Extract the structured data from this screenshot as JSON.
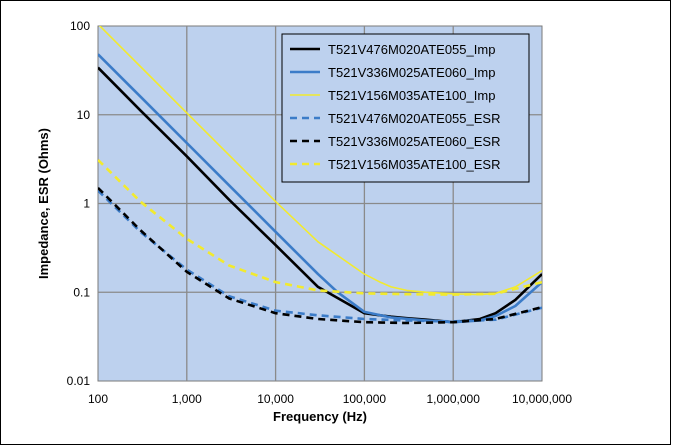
{
  "chart_data": {
    "type": "line",
    "title": "",
    "xlabel": "Frequency (Hz)",
    "ylabel": "Impedance, ESR (Ohms)",
    "x_scale": "log",
    "y_scale": "log",
    "xlim": [
      100,
      10000000
    ],
    "ylim": [
      0.01,
      100
    ],
    "x_ticks": [
      100,
      1000,
      10000,
      100000,
      1000000,
      10000000
    ],
    "x_tick_labels": [
      "100",
      "1,000",
      "10,000",
      "100,000",
      "1,000,000",
      "10,000,000"
    ],
    "y_ticks": [
      0.01,
      0.1,
      1,
      10,
      100
    ],
    "y_tick_labels": [
      "0.01",
      "0.1",
      "1",
      "10",
      "100"
    ],
    "grid": true,
    "background_color": "#bdd1ee",
    "legend_position": "top-right",
    "series": [
      {
        "name": "T521V476M020ATE055_Imp",
        "color": "#000000",
        "style": "solid",
        "x": [
          100,
          300,
          1000,
          3000,
          10000,
          30000,
          100000,
          200000,
          300000,
          500000,
          1000000,
          2000000,
          3000000,
          5000000,
          10000000
        ],
        "y": [
          34,
          11.2,
          3.4,
          1.1,
          0.34,
          0.115,
          0.058,
          0.053,
          0.051,
          0.049,
          0.046,
          0.05,
          0.058,
          0.082,
          0.16
        ]
      },
      {
        "name": "T521V336M025ATE060_Imp",
        "color": "#3c7cc8",
        "style": "solid",
        "x": [
          100,
          300,
          1000,
          3000,
          10000,
          30000,
          50000,
          100000,
          200000,
          500000,
          1000000,
          2000000,
          3000000,
          5000000,
          10000000
        ],
        "y": [
          48,
          16,
          4.8,
          1.6,
          0.48,
          0.16,
          0.1,
          0.06,
          0.052,
          0.048,
          0.046,
          0.048,
          0.054,
          0.07,
          0.13
        ]
      },
      {
        "name": "T521V156M035ATE100_Imp",
        "color": "#f2ea2e",
        "style": "solid",
        "x": [
          100,
          300,
          1000,
          3000,
          10000,
          30000,
          100000,
          150000,
          200000,
          300000,
          500000,
          1000000,
          2000000,
          3000000,
          5000000,
          10000000
        ],
        "y": [
          105,
          35,
          10.5,
          3.5,
          1.05,
          0.37,
          0.16,
          0.13,
          0.115,
          0.105,
          0.1,
          0.096,
          0.094,
          0.097,
          0.115,
          0.175
        ]
      },
      {
        "name": "T521V476M020ATE055_ESR",
        "color": "#3c7cc8",
        "style": "dashed",
        "x": [
          100,
          300,
          1000,
          3000,
          10000,
          30000,
          100000,
          300000,
          1000000,
          3000000,
          10000000
        ],
        "y": [
          1.4,
          0.48,
          0.18,
          0.09,
          0.062,
          0.055,
          0.05,
          0.048,
          0.047,
          0.049,
          0.067
        ]
      },
      {
        "name": "T521V336M025ATE060_ESR",
        "color": "#000000",
        "style": "dashed",
        "x": [
          100,
          300,
          1000,
          3000,
          10000,
          30000,
          100000,
          300000,
          1000000,
          3000000,
          10000000
        ],
        "y": [
          1.5,
          0.5,
          0.17,
          0.085,
          0.058,
          0.05,
          0.046,
          0.045,
          0.046,
          0.05,
          0.068
        ]
      },
      {
        "name": "T521V156M035ATE100_ESR",
        "color": "#f2ea2e",
        "style": "dashed",
        "x": [
          100,
          300,
          1000,
          3000,
          10000,
          30000,
          100000,
          300000,
          1000000,
          3000000,
          10000000
        ],
        "y": [
          3.1,
          1.05,
          0.4,
          0.2,
          0.13,
          0.105,
          0.097,
          0.095,
          0.094,
          0.096,
          0.13
        ]
      }
    ]
  }
}
